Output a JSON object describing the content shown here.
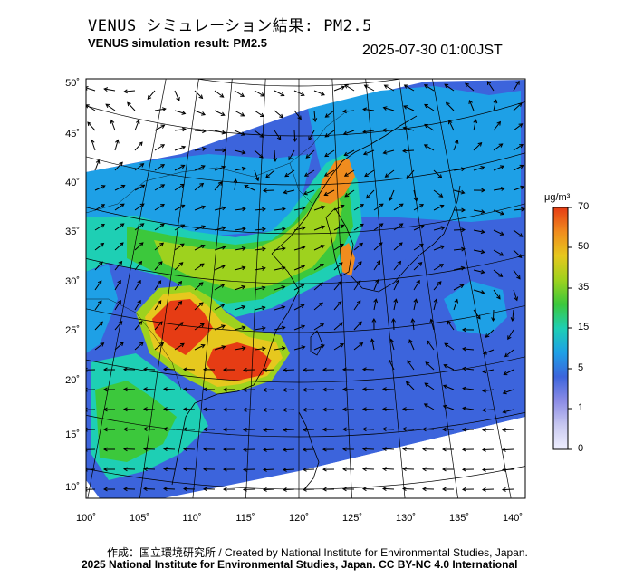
{
  "title_jp": "VENUS シミュレーション結果: PM2.5",
  "title_en": "VENUS simulation result: PM2.5",
  "timestamp": "2025-07-30 01:00JST",
  "lat_labels": [
    "50˚",
    "45˚",
    "40˚",
    "35˚",
    "30˚",
    "25˚",
    "20˚",
    "15˚",
    "10˚"
  ],
  "lon_labels": [
    "100˚",
    "105˚",
    "110˚",
    "115˚",
    "120˚",
    "125˚",
    "130˚",
    "135˚",
    "140˚"
  ],
  "colorbar": {
    "unit": "μg/m³",
    "ticks": [
      "70",
      "50",
      "35",
      "15",
      "5",
      "1",
      "0"
    ],
    "colors": [
      "#f0f0ff",
      "#c8c8f0",
      "#8c8ce6",
      "#3c64dc",
      "#1ea0e6",
      "#1ecfb4",
      "#3cc83c",
      "#9ed21e",
      "#e6c81e",
      "#f08c1e",
      "#e63c14"
    ]
  },
  "footer": {
    "credit": "作成：国立環境研究所 / Created by National Institute for Environmental Studies, Japan.",
    "license": "2025 National Institute for Environmental Studies, Japan. CC BY-NC 4.0 International"
  },
  "colors": {
    "background": "#ffffff",
    "frame": "#000000",
    "ocean_low": "#3c64dc"
  }
}
